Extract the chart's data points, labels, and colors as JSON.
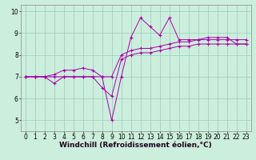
{
  "title": "",
  "xlabel": "Windchill (Refroidissement éolien,°C)",
  "ylabel": "",
  "bg_color": "#cceedd",
  "line_color": "#aa00aa",
  "grid_color": "#99ccbb",
  "xlim": [
    -0.5,
    23.5
  ],
  "ylim": [
    4.5,
    10.3
  ],
  "xticks": [
    0,
    1,
    2,
    3,
    4,
    5,
    6,
    7,
    8,
    9,
    10,
    11,
    12,
    13,
    14,
    15,
    16,
    17,
    18,
    19,
    20,
    21,
    22,
    23
  ],
  "yticks": [
    5,
    6,
    7,
    8,
    9,
    10
  ],
  "series1_x": [
    0,
    1,
    2,
    3,
    4,
    5,
    6,
    7,
    8,
    9,
    10,
    11,
    12,
    13,
    14,
    15,
    16,
    17,
    18,
    19,
    20,
    21,
    22,
    23
  ],
  "series1_y": [
    7.0,
    7.0,
    7.0,
    7.0,
    7.0,
    7.0,
    7.0,
    7.0,
    7.0,
    5.0,
    7.0,
    8.8,
    9.7,
    9.3,
    8.9,
    9.7,
    8.7,
    8.7,
    8.7,
    8.8,
    8.8,
    8.8,
    8.5,
    8.5
  ],
  "series2_x": [
    0,
    1,
    2,
    3,
    4,
    5,
    6,
    7,
    8,
    9,
    10,
    11,
    12,
    13,
    14,
    15,
    16,
    17,
    18,
    19,
    20,
    21,
    22,
    23
  ],
  "series2_y": [
    7.0,
    7.0,
    7.0,
    7.1,
    7.3,
    7.3,
    7.4,
    7.3,
    7.0,
    7.0,
    8.0,
    8.2,
    8.3,
    8.3,
    8.4,
    8.5,
    8.6,
    8.6,
    8.7,
    8.7,
    8.7,
    8.7,
    8.7,
    8.7
  ],
  "series3_x": [
    0,
    1,
    2,
    3,
    4,
    5,
    6,
    7,
    8,
    9,
    10,
    11,
    12,
    13,
    14,
    15,
    16,
    17,
    18,
    19,
    20,
    21,
    22,
    23
  ],
  "series3_y": [
    7.0,
    7.0,
    7.0,
    6.7,
    7.0,
    7.0,
    7.0,
    7.0,
    6.5,
    6.1,
    7.8,
    8.0,
    8.1,
    8.1,
    8.2,
    8.3,
    8.4,
    8.4,
    8.5,
    8.5,
    8.5,
    8.5,
    8.5,
    8.5
  ],
  "tick_fontsize": 5.5,
  "label_fontsize": 6.5
}
